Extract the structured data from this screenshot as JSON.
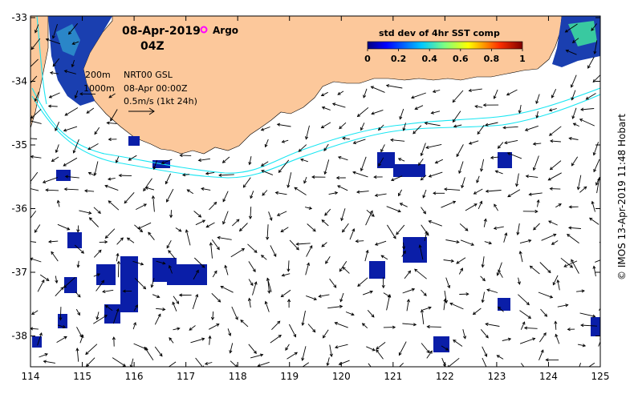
{
  "title": {
    "date": "08-Apr-2019",
    "time": "04Z",
    "argo_label": "Argo"
  },
  "legend": {
    "isobath_200": "200m",
    "isobath_1000": "1000m",
    "source": "NRT00 GSL",
    "current_time": "08-Apr 00:00Z",
    "scale": "0.5m/s (1kt 24h)"
  },
  "colorbar": {
    "title": "std dev of 4hr SST comp",
    "ticks": [
      "0",
      "0.2",
      "0.4",
      "0.6",
      "0.8",
      "1"
    ]
  },
  "axes": {
    "x_ticks": [
      "114",
      "115",
      "116",
      "117",
      "118",
      "119",
      "120",
      "121",
      "122",
      "123",
      "124",
      "125"
    ],
    "y_ticks": [
      "-33",
      "-34",
      "-35",
      "-36",
      "-37",
      "-38"
    ]
  },
  "credit": "© IMOS 13-Apr-2019 11:48 Hobart",
  "colors": {
    "land": "#fcc89b",
    "isobath": "#19e6f2",
    "argo": "#ff00ff",
    "sst_patch": "#0a1ea8"
  }
}
